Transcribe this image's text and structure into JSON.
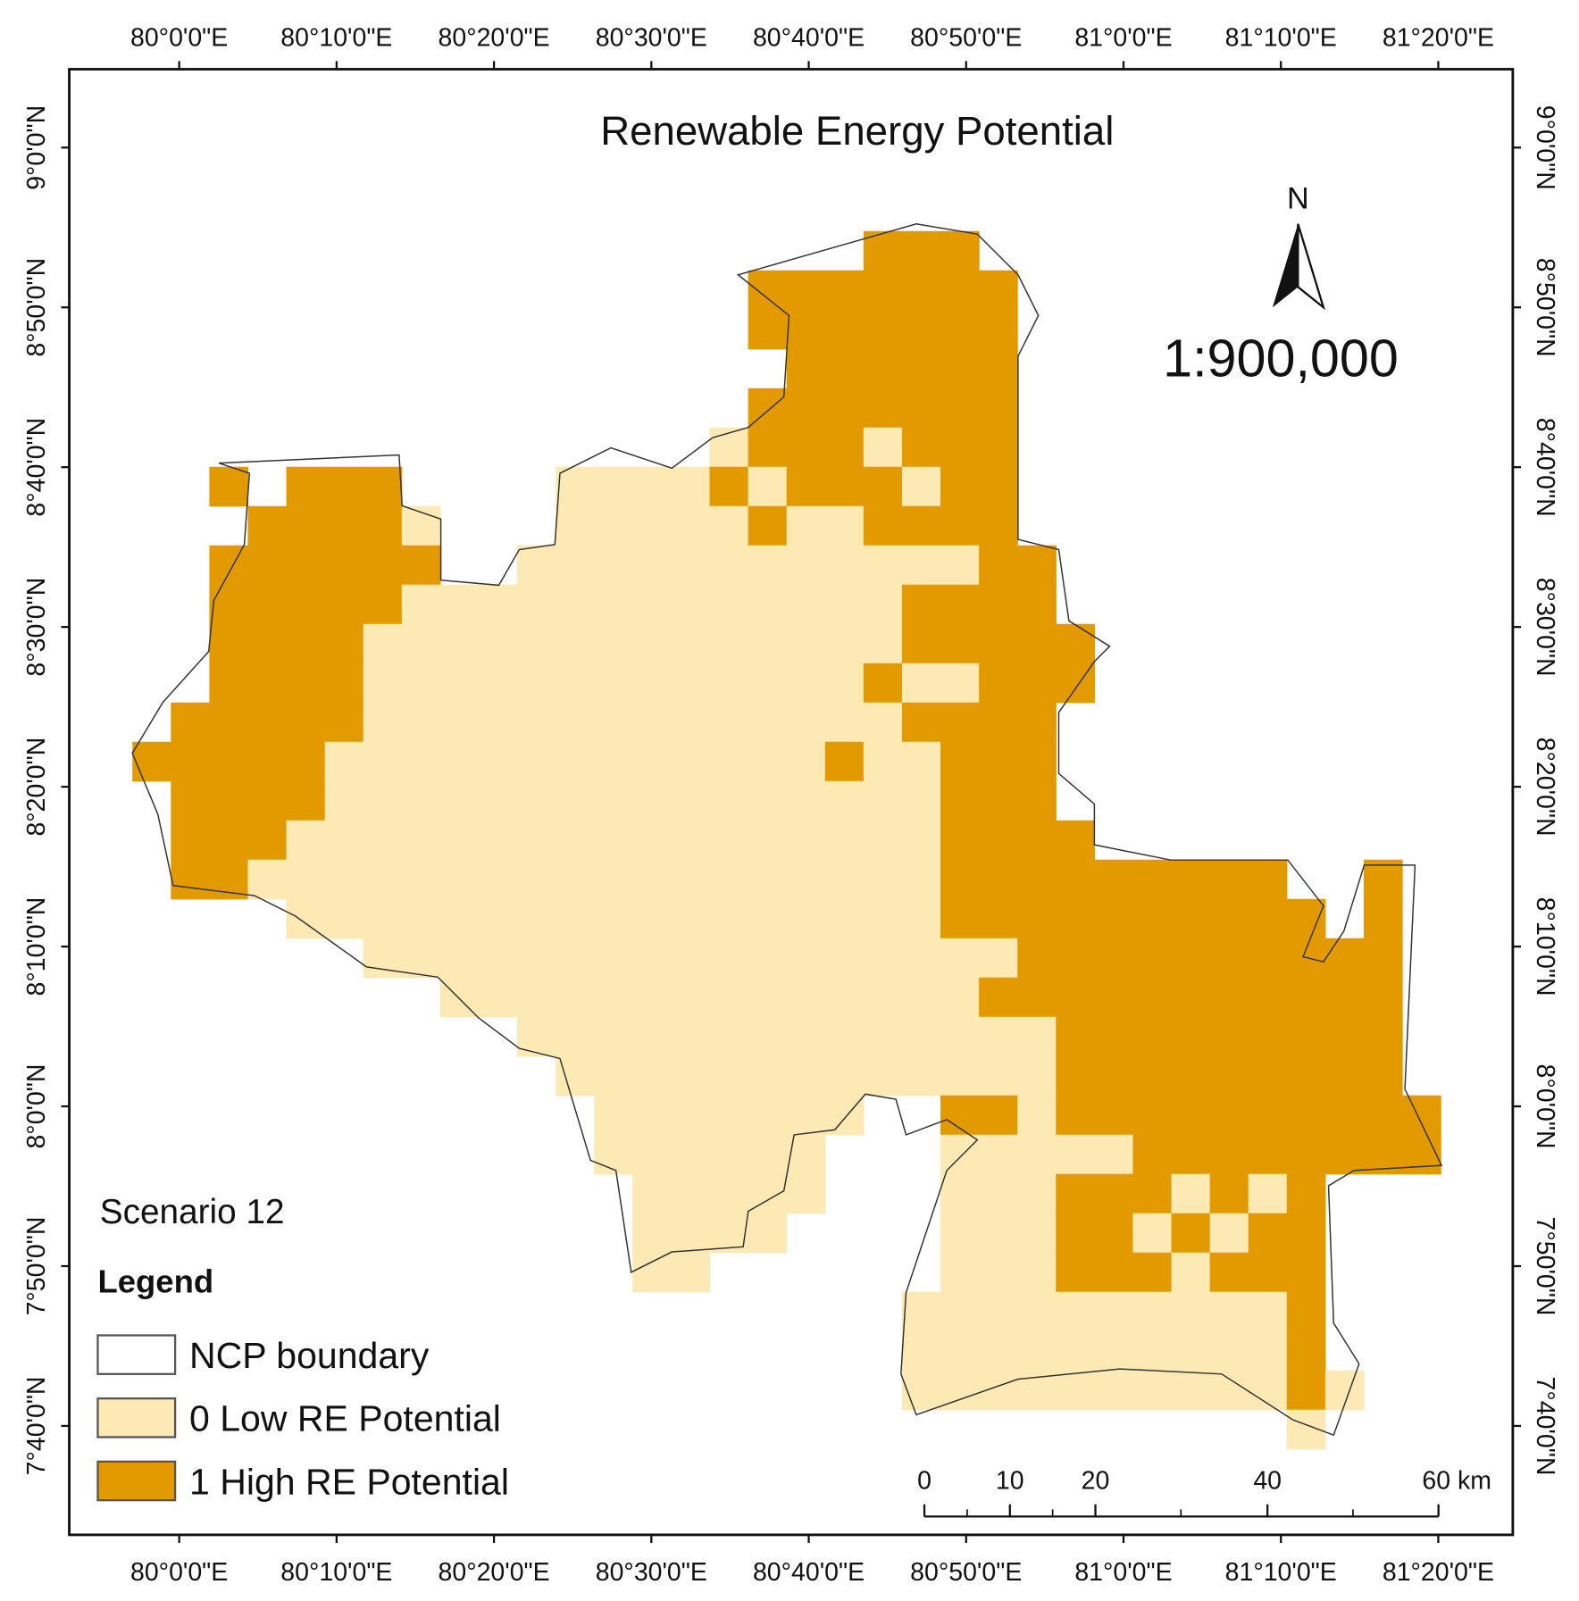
{
  "map": {
    "title": "Renewable Energy Potential",
    "north": "N",
    "scale": "1:900,000",
    "scenario": "Scenario 12",
    "legend": {
      "title": "Legend",
      "items": [
        "NCP boundary",
        "0 Low RE Potential",
        "1 High RE Potential"
      ]
    },
    "longitude_labels": [
      "80°0'0\"E",
      "80°10'0\"E",
      "80°20'0\"E",
      "80°30'0\"E",
      "80°40'0\"E",
      "80°50'0\"E",
      "81°0'0\"E",
      "81°10'0\"E",
      "81°20'0\"E"
    ],
    "latitude_labels": [
      "9°0'0\"N",
      "8°50'0\"N",
      "8°40'0\"N",
      "8°30'0\"N",
      "8°20'0\"N",
      "8°10'0\"N",
      "8°0'0\"N",
      "7°50'0\"N",
      "7°40'0\"N"
    ],
    "scale_bar": {
      "labels": [
        "0",
        "10",
        "20",
        "40",
        "60 km"
      ]
    }
  }
}
